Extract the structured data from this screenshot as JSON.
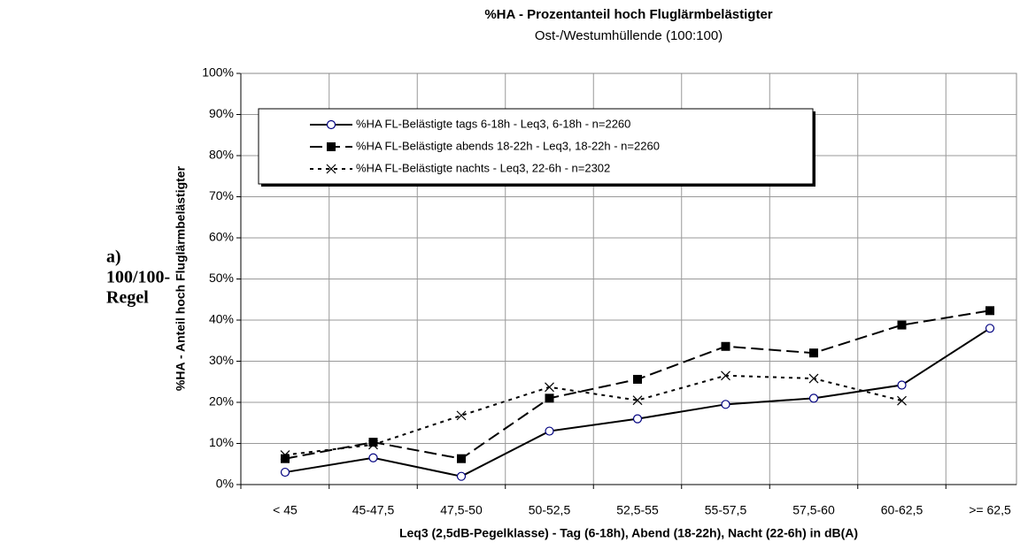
{
  "side_label": [
    "a)",
    "100/100-",
    "Regel"
  ],
  "chart_data": {
    "type": "line",
    "title": "%HA - Prozentanteil hoch Fluglärmbelästigter",
    "subtitle": "Ost-/Westumhüllende (100:100)",
    "x_label": "Leq3 (2,5dB-Pegelklasse) - Tag (6-18h), Abend (18-22h), Nacht (22-6h) in dB(A)",
    "y_label": "%HA - Anteil hoch Fluglärmbelästigter",
    "categories": [
      "< 45",
      "45-47,5",
      "47,5-50",
      "50-52,5",
      "52,5-55",
      "55-57,5",
      "57,5-60",
      "60-62,5",
      ">= 62,5"
    ],
    "ylim": [
      0,
      100
    ],
    "yticks": [
      {
        "value": 0,
        "label": "0%"
      },
      {
        "value": 10,
        "label": "10%"
      },
      {
        "value": 20,
        "label": "20%"
      },
      {
        "value": 30,
        "label": "30%"
      },
      {
        "value": 40,
        "label": "40%"
      },
      {
        "value": 50,
        "label": "50%"
      },
      {
        "value": 60,
        "label": "60%"
      },
      {
        "value": 70,
        "label": "70%"
      },
      {
        "value": 80,
        "label": "80%"
      },
      {
        "value": 90,
        "label": "90%"
      },
      {
        "value": 100,
        "label": "100%"
      }
    ],
    "grid": true,
    "legend": "top-left",
    "series": [
      {
        "name": "%HA FL-Belästigte tags 6-18h - Leq3, 6-18h - n=2260",
        "color": "#000000",
        "marker": "circle",
        "marker_color": "#000080",
        "dash": "solid",
        "values": [
          3,
          6.5,
          2,
          13,
          16,
          19.5,
          21,
          24.2,
          38
        ]
      },
      {
        "name": "%HA FL-Belästigte abends 18-22h - Leq3, 18-22h - n=2260",
        "color": "#000000",
        "marker": "square",
        "marker_color": "#000000",
        "dash": "long",
        "values": [
          6.3,
          10.3,
          6.3,
          21,
          25.6,
          33.6,
          32,
          38.8,
          42.3
        ]
      },
      {
        "name": "%HA FL-Belästigte nachts - Leq3, 22-6h - n=2302",
        "color": "#000000",
        "marker": "x",
        "marker_color": "#000000",
        "dash": "dotted",
        "values": [
          7.2,
          9.7,
          16.8,
          23.7,
          20.5,
          26.5,
          25.8,
          20.4,
          null
        ]
      }
    ]
  }
}
